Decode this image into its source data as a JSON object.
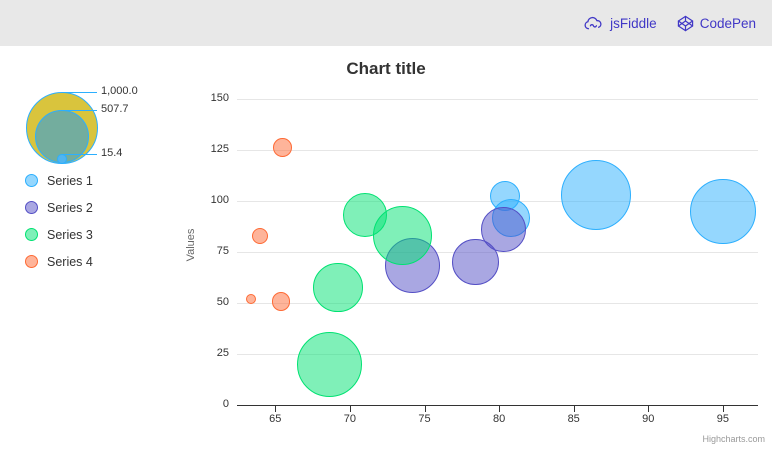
{
  "header": {
    "jsfiddle_label": "jsFiddle",
    "codepen_label": "CodePen",
    "link_color": "#4037c6",
    "bar_color": "#e8e8e8"
  },
  "chart": {
    "title": "Chart title",
    "y_axis_title": "Values",
    "credit": "Highcharts.com"
  },
  "legend": {
    "bubble_scale": {
      "labels": [
        "1,000.0",
        "507.7",
        "15.4"
      ],
      "values": [
        1000,
        507.7,
        15.4
      ],
      "circle_colors": [
        "#d9c43d",
        "#73ad9e",
        "#51b5f0"
      ],
      "border_color": "#2caffe"
    },
    "series": [
      {
        "label": "Series 1",
        "color": "#2caffe"
      },
      {
        "label": "Series 2",
        "color": "#544fc5"
      },
      {
        "label": "Series 3",
        "color": "#00e272"
      },
      {
        "label": "Series 4",
        "color": "#fe6a35"
      }
    ]
  },
  "chart_data": {
    "type": "bubble",
    "title": "Chart title",
    "xlabel": "",
    "ylabel": "Values",
    "x_ticks": [
      65,
      70,
      75,
      80,
      85,
      90,
      95
    ],
    "y_ticks": [
      0,
      25,
      50,
      75,
      100,
      125,
      150
    ],
    "xlim": [
      62.4,
      97.4
    ],
    "ylim": [
      0,
      150
    ],
    "grid": "horizontal-only",
    "legend_position": "left",
    "size_by": "area",
    "z_range": [
      15.4,
      1000
    ],
    "series": [
      {
        "name": "Series 1",
        "color": "#2caffe",
        "data": [
          {
            "x": 95,
            "y": 95,
            "z": 800
          },
          {
            "x": 86.5,
            "y": 102.9,
            "z": 940
          },
          {
            "x": 80.8,
            "y": 91.5,
            "z": 215
          },
          {
            "x": 80.4,
            "y": 102.5,
            "z": 120
          }
        ]
      },
      {
        "name": "Series 2",
        "color": "#544fc5",
        "data": [
          {
            "x": 80.3,
            "y": 86.1,
            "z": 320
          },
          {
            "x": 78.4,
            "y": 70.1,
            "z": 360
          },
          {
            "x": 74.2,
            "y": 68.5,
            "z": 535
          }
        ]
      },
      {
        "name": "Series 3",
        "color": "#00e272",
        "data": [
          {
            "x": 73.5,
            "y": 83.1,
            "z": 630
          },
          {
            "x": 71,
            "y": 93.2,
            "z": 320
          },
          {
            "x": 69.2,
            "y": 57.6,
            "z": 410
          },
          {
            "x": 68.6,
            "y": 20,
            "z": 790
          }
        ]
      },
      {
        "name": "Series 4",
        "color": "#fe6a35",
        "data": [
          {
            "x": 65.5,
            "y": 126.4,
            "z": 35
          },
          {
            "x": 64,
            "y": 82.9,
            "z": 25
          },
          {
            "x": 65.4,
            "y": 50.8,
            "z": 33
          },
          {
            "x": 63.4,
            "y": 51.8,
            "z": 15.4
          }
        ]
      }
    ]
  }
}
